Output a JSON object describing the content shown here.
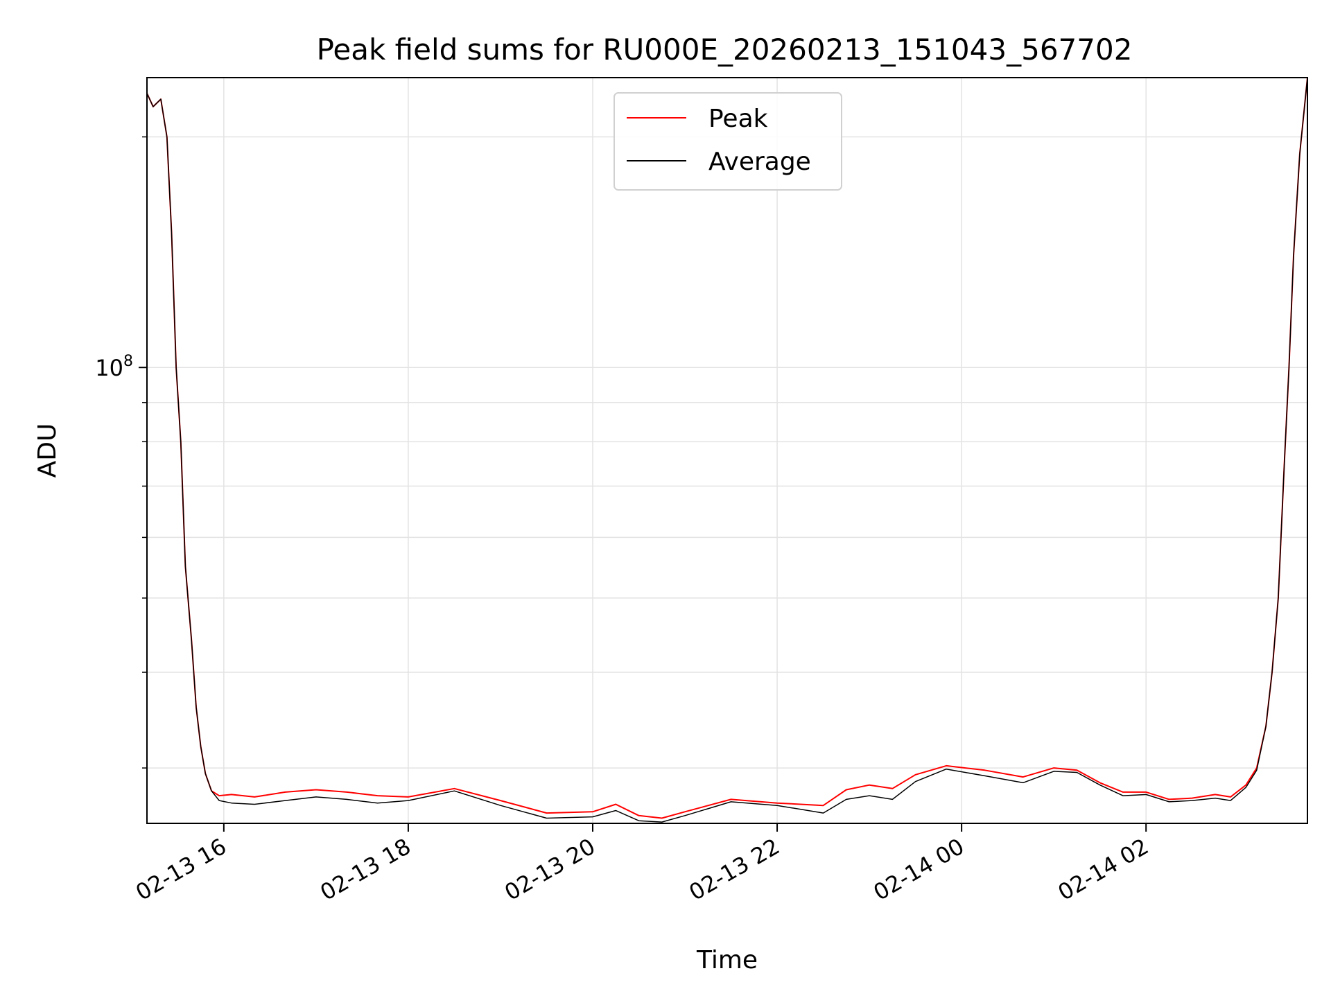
{
  "chart_data": {
    "type": "line",
    "title": "Peak field sums for RU000E_20260213_151043_567702",
    "xlabel": "Time",
    "ylabel": "ADU",
    "y_scale": "log",
    "ylim": [
      25400000,
      239000000
    ],
    "xlim": [
      "2026-02-13 15:10",
      "2026-02-14 03:45"
    ],
    "x_ticks": [
      "02-13 16",
      "02-13 18",
      "02-13 20",
      "02-13 22",
      "02-14 00",
      "02-14 02"
    ],
    "x_tick_values": [
      "2026-02-13 16:00",
      "2026-02-13 18:00",
      "2026-02-13 20:00",
      "2026-02-13 22:00",
      "2026-02-14 00:00",
      "2026-02-14 02:00"
    ],
    "y_major_tick": {
      "label_base": "10",
      "label_exp": "8",
      "value": 100000000
    },
    "y_minor_ticks": [
      30000000,
      40000000,
      50000000,
      60000000,
      70000000,
      80000000,
      90000000,
      200000000
    ],
    "grid": true,
    "legend": "upper center",
    "series": [
      {
        "name": "Peak",
        "color": "#ff0000",
        "x": [
          "2026-02-13 15:10",
          "2026-02-13 15:14",
          "2026-02-13 15:19",
          "2026-02-13 15:23",
          "2026-02-13 15:26",
          "2026-02-13 15:29",
          "2026-02-13 15:32",
          "2026-02-13 15:35",
          "2026-02-13 15:39",
          "2026-02-13 15:42",
          "2026-02-13 15:45",
          "2026-02-13 15:48",
          "2026-02-13 15:52",
          "2026-02-13 15:57",
          "2026-02-13 16:05",
          "2026-02-13 16:20",
          "2026-02-13 16:40",
          "2026-02-13 17:00",
          "2026-02-13 17:20",
          "2026-02-13 17:40",
          "2026-02-13 18:00",
          "2026-02-13 18:30",
          "2026-02-13 19:00",
          "2026-02-13 19:30",
          "2026-02-13 20:00",
          "2026-02-13 20:15",
          "2026-02-13 20:30",
          "2026-02-13 20:45",
          "2026-02-13 21:00",
          "2026-02-13 21:30",
          "2026-02-13 22:00",
          "2026-02-13 22:30",
          "2026-02-13 22:45",
          "2026-02-13 23:00",
          "2026-02-13 23:15",
          "2026-02-13 23:30",
          "2026-02-13 23:50",
          "2026-02-14 00:15",
          "2026-02-14 00:40",
          "2026-02-14 01:00",
          "2026-02-14 01:15",
          "2026-02-14 01:30",
          "2026-02-14 01:45",
          "2026-02-14 02:00",
          "2026-02-14 02:15",
          "2026-02-14 02:30",
          "2026-02-14 02:45",
          "2026-02-14 02:55",
          "2026-02-14 03:05",
          "2026-02-14 03:12",
          "2026-02-14 03:18",
          "2026-02-14 03:22",
          "2026-02-14 03:26",
          "2026-02-14 03:30",
          "2026-02-14 03:33",
          "2026-02-14 03:36",
          "2026-02-14 03:40",
          "2026-02-14 03:45"
        ],
        "y": [
          228000000,
          219000000,
          224000000,
          200000000,
          150000000,
          100000000,
          80000000,
          55000000,
          44000000,
          36000000,
          32000000,
          29500000,
          28000000,
          27600000,
          27700000,
          27500000,
          27900000,
          28100000,
          27900000,
          27600000,
          27500000,
          28200000,
          27200000,
          26200000,
          26300000,
          26900000,
          26000000,
          25800000,
          26300000,
          27300000,
          27000000,
          26800000,
          28100000,
          28500000,
          28200000,
          29400000,
          30200000,
          29800000,
          29200000,
          30000000,
          29800000,
          28700000,
          27900000,
          27900000,
          27300000,
          27400000,
          27700000,
          27500000,
          28500000,
          30000000,
          34000000,
          40000000,
          50000000,
          75000000,
          100000000,
          140000000,
          190000000,
          239000000
        ]
      },
      {
        "name": "Average",
        "color": "#000000",
        "x": [
          "2026-02-13 15:10",
          "2026-02-13 15:14",
          "2026-02-13 15:19",
          "2026-02-13 15:23",
          "2026-02-13 15:26",
          "2026-02-13 15:29",
          "2026-02-13 15:32",
          "2026-02-13 15:35",
          "2026-02-13 15:39",
          "2026-02-13 15:42",
          "2026-02-13 15:45",
          "2026-02-13 15:48",
          "2026-02-13 15:52",
          "2026-02-13 15:57",
          "2026-02-13 16:05",
          "2026-02-13 16:20",
          "2026-02-13 16:40",
          "2026-02-13 17:00",
          "2026-02-13 17:20",
          "2026-02-13 17:40",
          "2026-02-13 18:00",
          "2026-02-13 18:30",
          "2026-02-13 19:00",
          "2026-02-13 19:30",
          "2026-02-13 20:00",
          "2026-02-13 20:15",
          "2026-02-13 20:30",
          "2026-02-13 20:45",
          "2026-02-13 21:00",
          "2026-02-13 21:30",
          "2026-02-13 22:00",
          "2026-02-13 22:30",
          "2026-02-13 22:45",
          "2026-02-13 23:00",
          "2026-02-13 23:15",
          "2026-02-13 23:30",
          "2026-02-13 23:50",
          "2026-02-14 00:15",
          "2026-02-14 00:40",
          "2026-02-14 01:00",
          "2026-02-14 01:15",
          "2026-02-14 01:30",
          "2026-02-14 01:45",
          "2026-02-14 02:00",
          "2026-02-14 02:15",
          "2026-02-14 02:30",
          "2026-02-14 02:45",
          "2026-02-14 02:55",
          "2026-02-14 03:05",
          "2026-02-14 03:12",
          "2026-02-14 03:18",
          "2026-02-14 03:22",
          "2026-02-14 03:26",
          "2026-02-14 03:30",
          "2026-02-14 03:33",
          "2026-02-14 03:36",
          "2026-02-14 03:40",
          "2026-02-14 03:45"
        ],
        "y": [
          228000000,
          219000000,
          224000000,
          200000000,
          150000000,
          100000000,
          80000000,
          55000000,
          44000000,
          36000000,
          32000000,
          29500000,
          28000000,
          27200000,
          27000000,
          26900000,
          27200000,
          27500000,
          27300000,
          27000000,
          27200000,
          28000000,
          26800000,
          25800000,
          25900000,
          26400000,
          25600000,
          25500000,
          26000000,
          27100000,
          26800000,
          26200000,
          27300000,
          27600000,
          27300000,
          28800000,
          29900000,
          29300000,
          28700000,
          29700000,
          29600000,
          28500000,
          27600000,
          27700000,
          27100000,
          27200000,
          27400000,
          27200000,
          28300000,
          29800000,
          34000000,
          40000000,
          50000000,
          75000000,
          100000000,
          140000000,
          190000000,
          239000000
        ]
      }
    ]
  }
}
